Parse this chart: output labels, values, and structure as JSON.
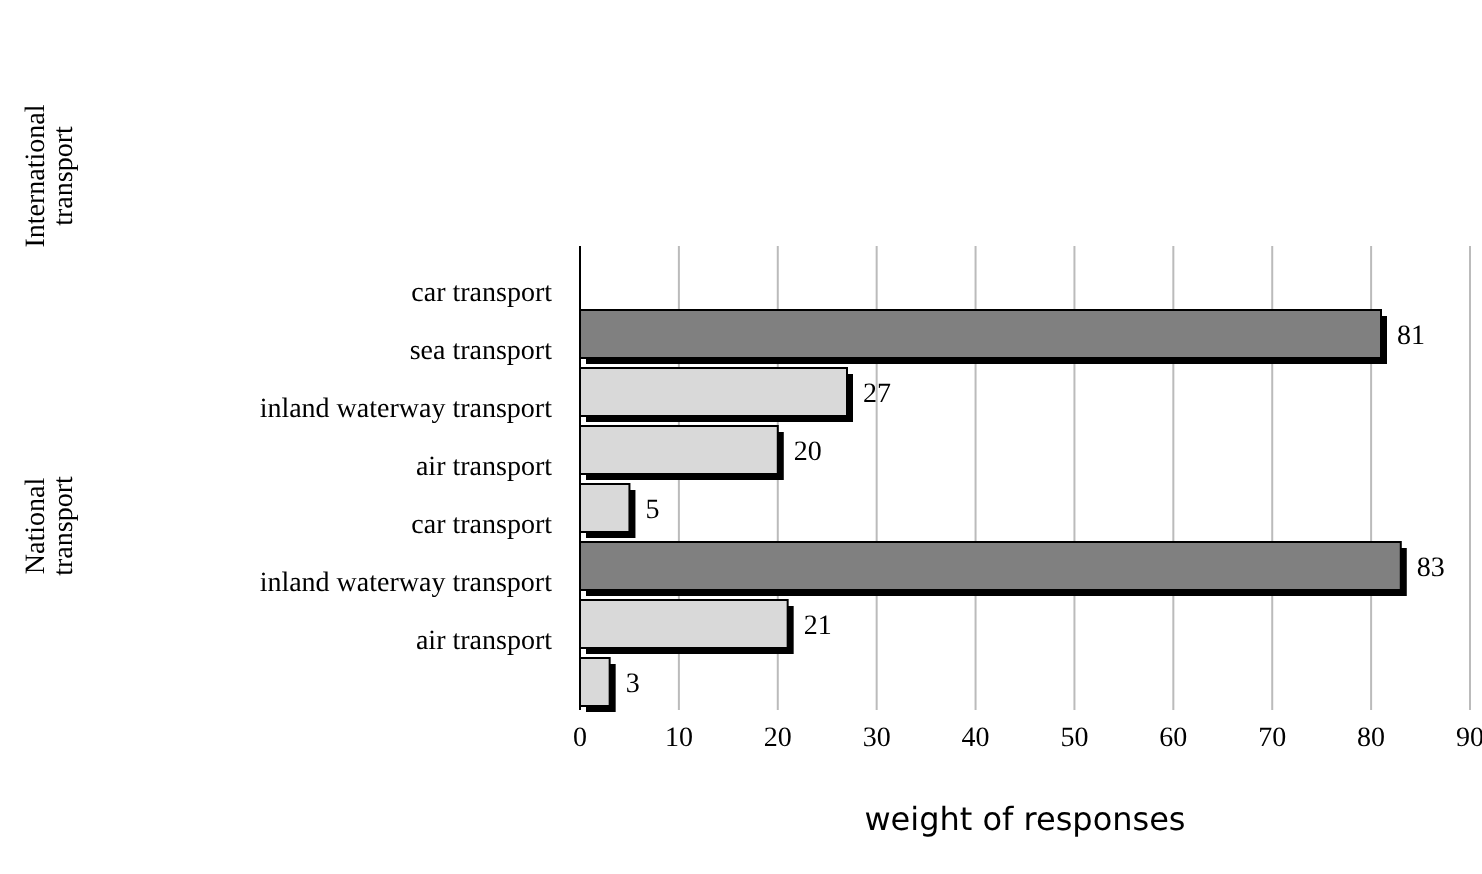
{
  "chart_data": {
    "type": "bar",
    "orientation": "horizontal",
    "xlabel": "weight of responses",
    "categories": [
      "car transport",
      "sea transport",
      "inland waterway transport",
      "air transport",
      "car transport",
      "inland waterway transport",
      "air transport",
      null
    ],
    "values": [
      null,
      81,
      27,
      20,
      5,
      83,
      21,
      3
    ],
    "colors": [
      "#d9d9d9",
      "#808080",
      "#d9d9d9",
      "#d9d9d9",
      "#d9d9d9",
      "#808080",
      "#d9d9d9",
      "#d9d9d9"
    ],
    "xlim": [
      0,
      90
    ],
    "xticks": [
      0,
      10,
      20,
      30,
      40,
      50,
      60,
      70,
      80,
      90
    ],
    "grid": "x",
    "data_labels": true,
    "annotations": [
      "International transport",
      "National transport"
    ]
  }
}
